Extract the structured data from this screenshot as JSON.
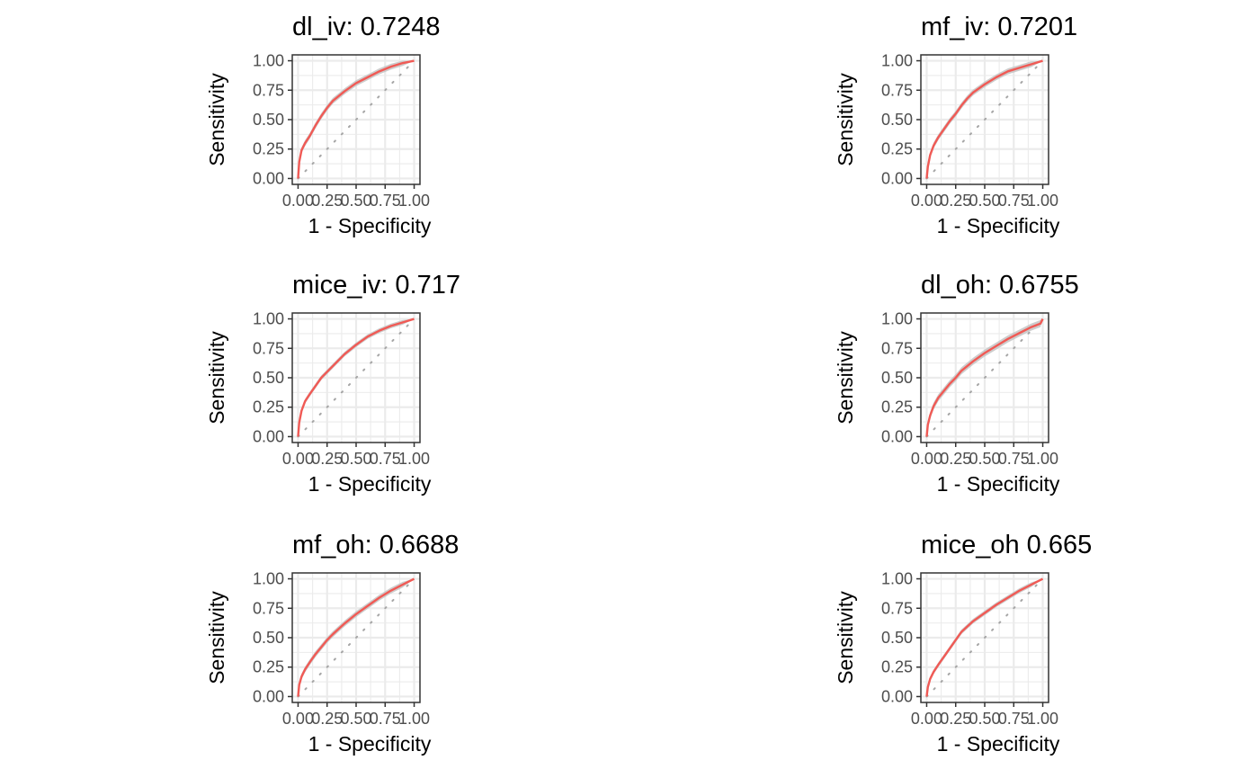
{
  "colors": {
    "curve": "#f05a55",
    "band": "#c4c4c4"
  },
  "chart_data": [
    {
      "type": "line",
      "title": "dl_iv: 0.7248",
      "xlabel": "1 - Specificity",
      "ylabel": "Sensitivity",
      "xlim": [
        0,
        1
      ],
      "ylim": [
        0,
        1
      ],
      "x_ticks": [
        "0.00",
        "0.25",
        "0.50",
        "0.75",
        "1.00"
      ],
      "y_ticks": [
        "0.00",
        "0.25",
        "0.50",
        "0.75",
        "1.00"
      ],
      "grid": true,
      "reference_diagonal": true,
      "series": [
        {
          "x": [
            0,
            0.01,
            0.03,
            0.06,
            0.1,
            0.15,
            0.2,
            0.25,
            0.3,
            0.4,
            0.5,
            0.6,
            0.7,
            0.8,
            0.9,
            1.0
          ],
          "y": [
            0,
            0.14,
            0.24,
            0.3,
            0.36,
            0.45,
            0.53,
            0.6,
            0.66,
            0.74,
            0.81,
            0.86,
            0.91,
            0.95,
            0.98,
            1.0
          ]
        }
      ],
      "band_halfwidth": 0.025
    },
    {
      "type": "line",
      "title": "mf_iv: 0.7201",
      "xlabel": "1 - Specificity",
      "ylabel": "Sensitivity",
      "xlim": [
        0,
        1
      ],
      "ylim": [
        0,
        1
      ],
      "x_ticks": [
        "0.00",
        "0.25",
        "0.50",
        "0.75",
        "1.00"
      ],
      "y_ticks": [
        "0.00",
        "0.25",
        "0.50",
        "0.75",
        "1.00"
      ],
      "grid": true,
      "reference_diagonal": true,
      "series": [
        {
          "x": [
            0,
            0.01,
            0.03,
            0.06,
            0.1,
            0.15,
            0.2,
            0.25,
            0.3,
            0.35,
            0.4,
            0.5,
            0.6,
            0.7,
            0.8,
            0.9,
            1.0
          ],
          "y": [
            0,
            0.1,
            0.2,
            0.28,
            0.35,
            0.42,
            0.49,
            0.55,
            0.62,
            0.68,
            0.73,
            0.8,
            0.86,
            0.91,
            0.94,
            0.97,
            1.0
          ]
        }
      ],
      "band_halfwidth": 0.025
    },
    {
      "type": "line",
      "title": "mice_iv: 0.717",
      "xlabel": "1 - Specificity",
      "ylabel": "Sensitivity",
      "xlim": [
        0,
        1
      ],
      "ylim": [
        0,
        1
      ],
      "x_ticks": [
        "0.00",
        "0.25",
        "0.50",
        "0.75",
        "1.00"
      ],
      "y_ticks": [
        "0.00",
        "0.25",
        "0.50",
        "0.75",
        "1.00"
      ],
      "grid": true,
      "reference_diagonal": true,
      "series": [
        {
          "x": [
            0,
            0.01,
            0.03,
            0.06,
            0.1,
            0.15,
            0.2,
            0.25,
            0.3,
            0.4,
            0.5,
            0.6,
            0.7,
            0.8,
            0.9,
            1.0
          ],
          "y": [
            0,
            0.12,
            0.22,
            0.3,
            0.36,
            0.43,
            0.5,
            0.55,
            0.6,
            0.7,
            0.78,
            0.85,
            0.9,
            0.94,
            0.97,
            1.0
          ]
        }
      ],
      "band_halfwidth": 0.02
    },
    {
      "type": "line",
      "title": "dl_oh: 0.6755",
      "xlabel": "1 - Specificity",
      "ylabel": "Sensitivity",
      "xlim": [
        0,
        1
      ],
      "ylim": [
        0,
        1
      ],
      "x_ticks": [
        "0.00",
        "0.25",
        "0.50",
        "0.75",
        "1.00"
      ],
      "y_ticks": [
        "0.00",
        "0.25",
        "0.50",
        "0.75",
        "1.00"
      ],
      "grid": true,
      "reference_diagonal": true,
      "series": [
        {
          "x": [
            0,
            0.01,
            0.03,
            0.06,
            0.1,
            0.15,
            0.2,
            0.25,
            0.3,
            0.4,
            0.5,
            0.6,
            0.7,
            0.8,
            0.9,
            0.98,
            1.0
          ],
          "y": [
            0,
            0.1,
            0.18,
            0.26,
            0.33,
            0.39,
            0.45,
            0.5,
            0.56,
            0.64,
            0.71,
            0.77,
            0.83,
            0.88,
            0.93,
            0.96,
            1.0
          ]
        }
      ],
      "band_halfwidth": 0.03
    },
    {
      "type": "line",
      "title": "mf_oh: 0.6688",
      "xlabel": "1 - Specificity",
      "ylabel": "Sensitivity",
      "xlim": [
        0,
        1
      ],
      "ylim": [
        0,
        1
      ],
      "x_ticks": [
        "0.00",
        "0.25",
        "0.50",
        "0.75",
        "1.00"
      ],
      "y_ticks": [
        "0.00",
        "0.25",
        "0.50",
        "0.75",
        "1.00"
      ],
      "grid": true,
      "reference_diagonal": true,
      "series": [
        {
          "x": [
            0,
            0.01,
            0.03,
            0.06,
            0.1,
            0.15,
            0.2,
            0.25,
            0.3,
            0.4,
            0.5,
            0.6,
            0.7,
            0.8,
            0.9,
            1.0
          ],
          "y": [
            0,
            0.1,
            0.17,
            0.23,
            0.29,
            0.36,
            0.42,
            0.48,
            0.53,
            0.62,
            0.7,
            0.77,
            0.84,
            0.9,
            0.95,
            1.0
          ]
        }
      ],
      "band_halfwidth": 0.025
    },
    {
      "type": "line",
      "title": "mice_oh 0.665",
      "xlabel": "1 - Specificity",
      "ylabel": "Sensitivity",
      "xlim": [
        0,
        1
      ],
      "ylim": [
        0,
        1
      ],
      "x_ticks": [
        "0.00",
        "0.25",
        "0.50",
        "0.75",
        "1.00"
      ],
      "y_ticks": [
        "0.00",
        "0.25",
        "0.50",
        "0.75",
        "1.00"
      ],
      "grid": true,
      "reference_diagonal": true,
      "series": [
        {
          "x": [
            0,
            0.01,
            0.03,
            0.06,
            0.1,
            0.15,
            0.2,
            0.25,
            0.3,
            0.4,
            0.5,
            0.6,
            0.7,
            0.8,
            0.9,
            1.0
          ],
          "y": [
            0,
            0.08,
            0.15,
            0.21,
            0.27,
            0.34,
            0.41,
            0.48,
            0.55,
            0.64,
            0.71,
            0.78,
            0.84,
            0.9,
            0.95,
            1.0
          ]
        }
      ],
      "band_halfwidth": 0.02
    }
  ]
}
